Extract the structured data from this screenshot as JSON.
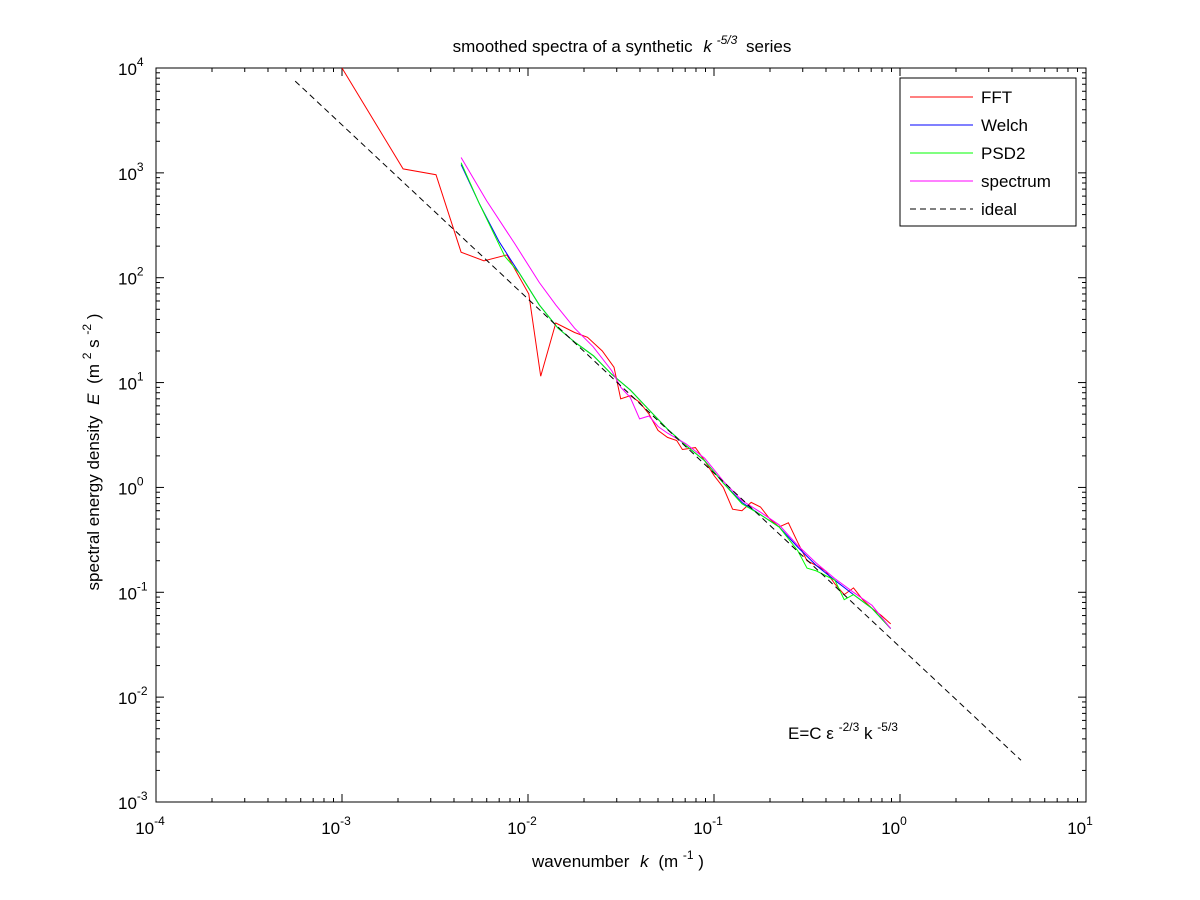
{
  "chart_data": {
    "type": "line",
    "title": "smoothed spectra of a synthetic",
    "title_math": "k",
    "title_math_exp": "-5/3",
    "title_suffix": "series",
    "xlabel": "wavenumber",
    "xlabel_sym": "k",
    "xlabel_unit_open": "(m",
    "xlabel_unit_exp": "-1",
    "xlabel_unit_close": ")",
    "ylabel": "spectral energy density",
    "ylabel_sym": "E",
    "ylabel_unit_a": "(m",
    "ylabel_unit_a_exp": "2",
    "ylabel_unit_b": "s",
    "ylabel_unit_b_exp": "-2",
    "ylabel_unit_close": ")",
    "xscale": "log",
    "yscale": "log",
    "xlim": [
      0.0001,
      10
    ],
    "ylim": [
      0.001,
      10000
    ],
    "grid": false,
    "legend_position": "top-right",
    "x_ticks": [
      {
        "base": "10",
        "exp": "-4",
        "value": 0.0001
      },
      {
        "base": "10",
        "exp": "-3",
        "value": 0.001
      },
      {
        "base": "10",
        "exp": "-2",
        "value": 0.01
      },
      {
        "base": "10",
        "exp": "-1",
        "value": 0.1
      },
      {
        "base": "10",
        "exp": "0",
        "value": 1
      },
      {
        "base": "10",
        "exp": "1",
        "value": 10
      }
    ],
    "y_ticks": [
      {
        "base": "10",
        "exp": "-3",
        "value": 0.001
      },
      {
        "base": "10",
        "exp": "-2",
        "value": 0.01
      },
      {
        "base": "10",
        "exp": "-1",
        "value": 0.1
      },
      {
        "base": "10",
        "exp": "0",
        "value": 1
      },
      {
        "base": "10",
        "exp": "1",
        "value": 10
      },
      {
        "base": "10",
        "exp": "2",
        "value": 100
      },
      {
        "base": "10",
        "exp": "3",
        "value": 1000
      },
      {
        "base": "10",
        "exp": "4",
        "value": 10000
      }
    ],
    "annotation": {
      "pre": "E=C",
      "eps": "ε",
      "eps_exp": "-2/3",
      "mid": "k",
      "k_exp": "-5/3",
      "x": 0.25,
      "y": 0.004
    },
    "series": [
      {
        "name": "FFT",
        "color": "#ff0000",
        "dash": "solid",
        "points": [
          [
            0.001,
            10000
          ],
          [
            0.00213,
            1090
          ],
          [
            0.0032,
            960
          ],
          [
            0.00437,
            175
          ],
          [
            0.0058,
            145
          ],
          [
            0.0077,
            165
          ],
          [
            0.0101,
            70
          ],
          [
            0.0117,
            11.5
          ],
          [
            0.0141,
            37
          ],
          [
            0.0178,
            30
          ],
          [
            0.0209,
            27
          ],
          [
            0.0251,
            20
          ],
          [
            0.029,
            14
          ],
          [
            0.0315,
            7
          ],
          [
            0.0355,
            7.5
          ],
          [
            0.0398,
            6.5
          ],
          [
            0.0447,
            5
          ],
          [
            0.05,
            3.5
          ],
          [
            0.0562,
            3
          ],
          [
            0.063,
            2.8
          ],
          [
            0.0676,
            2.3
          ],
          [
            0.0794,
            2.4
          ],
          [
            0.0891,
            1.8
          ],
          [
            0.1,
            1.3
          ],
          [
            0.1122,
            1.0
          ],
          [
            0.1259,
            0.62
          ],
          [
            0.1413,
            0.6
          ],
          [
            0.1585,
            0.72
          ],
          [
            0.1778,
            0.65
          ],
          [
            0.1995,
            0.5
          ],
          [
            0.2239,
            0.42
          ],
          [
            0.2512,
            0.46
          ],
          [
            0.2818,
            0.3
          ],
          [
            0.3162,
            0.2
          ],
          [
            0.3548,
            0.18
          ],
          [
            0.3981,
            0.16
          ],
          [
            0.4467,
            0.12
          ],
          [
            0.5012,
            0.095
          ],
          [
            0.5623,
            0.11
          ],
          [
            0.631,
            0.085
          ],
          [
            0.7079,
            0.07
          ],
          [
            0.7943,
            0.06
          ],
          [
            0.8913,
            0.05
          ]
        ]
      },
      {
        "name": "Welch",
        "color": "#0000ff",
        "dash": "solid",
        "points": [
          [
            0.00437,
            1200
          ],
          [
            0.0055,
            500
          ],
          [
            0.007,
            220
          ],
          [
            0.009,
            110
          ],
          [
            0.0115,
            55
          ],
          [
            0.0145,
            33
          ],
          [
            0.018,
            24
          ],
          [
            0.0225,
            18
          ],
          [
            0.0282,
            12
          ],
          [
            0.0355,
            8.5
          ],
          [
            0.0447,
            5.5
          ],
          [
            0.0562,
            3.6
          ],
          [
            0.0708,
            2.5
          ],
          [
            0.0891,
            1.8
          ],
          [
            0.1122,
            1.1
          ],
          [
            0.1413,
            0.72
          ],
          [
            0.1778,
            0.55
          ],
          [
            0.2239,
            0.42
          ],
          [
            0.2818,
            0.27
          ],
          [
            0.3548,
            0.18
          ],
          [
            0.4467,
            0.13
          ],
          [
            0.5623,
            0.095
          ],
          [
            0.7079,
            0.07
          ],
          [
            0.8913,
            0.045
          ]
        ]
      },
      {
        "name": "PSD2",
        "color": "#00ff00",
        "dash": "solid",
        "points": [
          [
            0.00437,
            1250
          ],
          [
            0.0055,
            500
          ],
          [
            0.0075,
            160
          ],
          [
            0.009,
            110
          ],
          [
            0.0115,
            55
          ],
          [
            0.0145,
            33
          ],
          [
            0.018,
            24
          ],
          [
            0.0225,
            18
          ],
          [
            0.0282,
            12
          ],
          [
            0.0355,
            8.5
          ],
          [
            0.0447,
            5.5
          ],
          [
            0.0562,
            3.6
          ],
          [
            0.0708,
            2.5
          ],
          [
            0.0891,
            1.8
          ],
          [
            0.1122,
            1.1
          ],
          [
            0.1413,
            0.7
          ],
          [
            0.1778,
            0.55
          ],
          [
            0.2239,
            0.42
          ],
          [
            0.2818,
            0.25
          ],
          [
            0.3162,
            0.17
          ],
          [
            0.3548,
            0.16
          ],
          [
            0.4467,
            0.13
          ],
          [
            0.5012,
            0.085
          ],
          [
            0.5623,
            0.095
          ],
          [
            0.7079,
            0.07
          ],
          [
            0.8913,
            0.045
          ]
        ]
      },
      {
        "name": "spectrum",
        "color": "#ff00ff",
        "dash": "solid",
        "points": [
          [
            0.00437,
            1400
          ],
          [
            0.006,
            540
          ],
          [
            0.0085,
            210
          ],
          [
            0.0115,
            90
          ],
          [
            0.0141,
            55
          ],
          [
            0.0178,
            33
          ],
          [
            0.0224,
            22
          ],
          [
            0.0282,
            13
          ],
          [
            0.0316,
            9
          ],
          [
            0.0355,
            7.2
          ],
          [
            0.0398,
            4.5
          ],
          [
            0.0447,
            4.8
          ],
          [
            0.0501,
            3.8
          ],
          [
            0.0562,
            3.3
          ],
          [
            0.0708,
            2.6
          ],
          [
            0.0891,
            1.9
          ],
          [
            0.1122,
            1.15
          ],
          [
            0.1413,
            0.75
          ],
          [
            0.1778,
            0.58
          ],
          [
            0.2239,
            0.44
          ],
          [
            0.2818,
            0.28
          ],
          [
            0.3548,
            0.19
          ],
          [
            0.4467,
            0.135
          ],
          [
            0.5623,
            0.1
          ],
          [
            0.7079,
            0.075
          ],
          [
            0.8913,
            0.045
          ]
        ]
      },
      {
        "name": "ideal",
        "color": "#000000",
        "dash": "dashed",
        "points": [
          [
            0.00056,
            7500
          ],
          [
            4.47,
            0.0025
          ]
        ]
      }
    ]
  }
}
